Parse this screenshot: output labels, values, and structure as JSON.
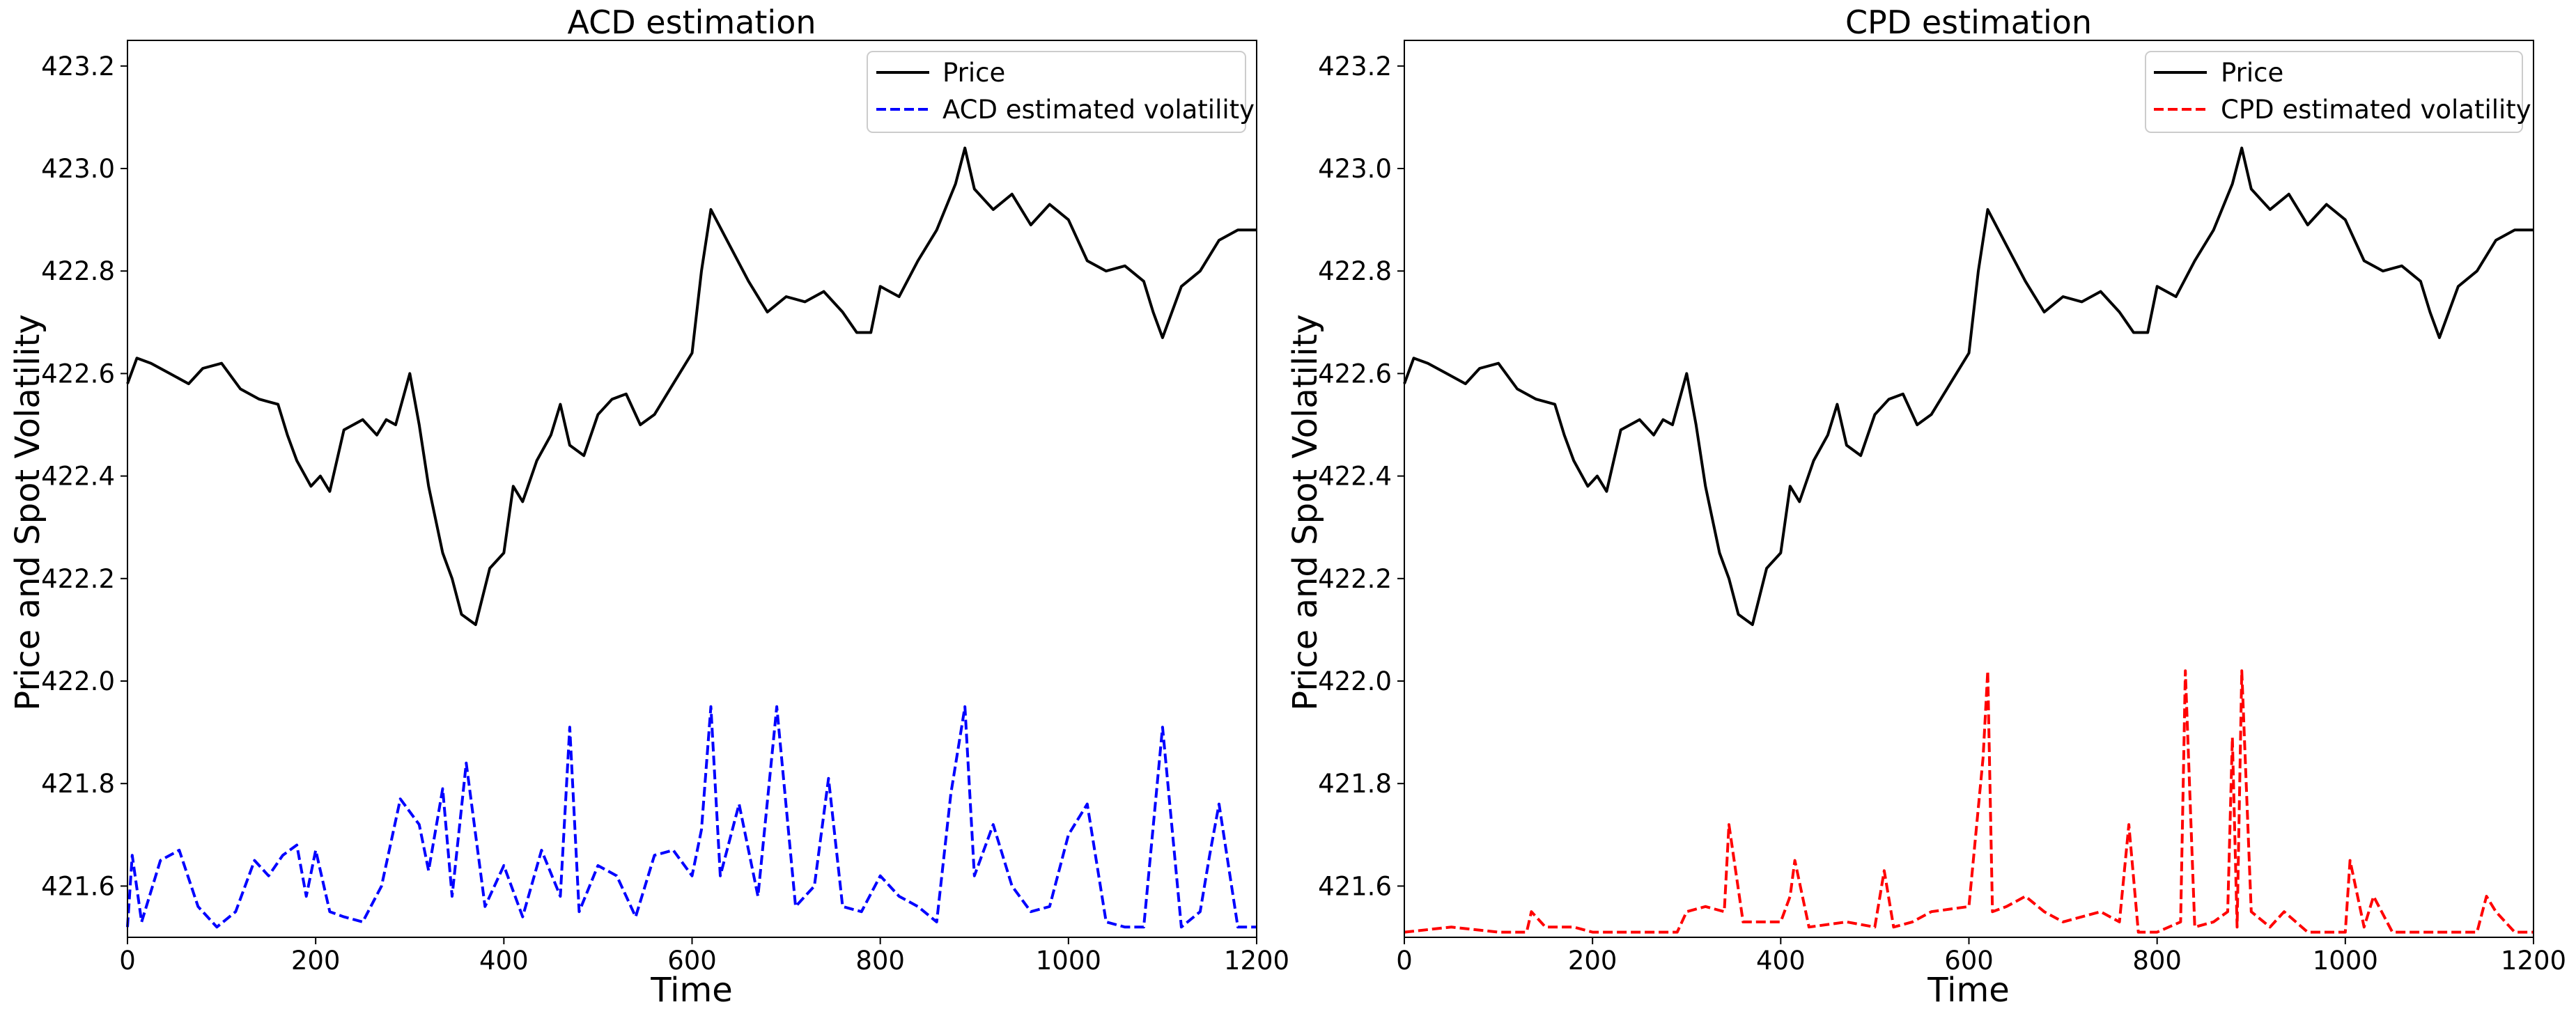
{
  "chart_data": [
    {
      "type": "line",
      "title": "ACD estimation",
      "xlabel": "Time",
      "ylabel": "Price and Spot Volatility",
      "xlim": [
        0,
        1200
      ],
      "ylim": [
        421.5,
        423.25
      ],
      "x_ticks": [
        0,
        200,
        400,
        600,
        800,
        1000,
        1200
      ],
      "y_ticks": [
        421.6,
        421.8,
        422.0,
        422.2,
        422.4,
        422.6,
        422.8,
        423.0,
        423.2
      ],
      "legend_position": "upper-right",
      "series": [
        {
          "name": "Price",
          "color": "#000000",
          "style": "solid",
          "x": [
            0,
            10,
            25,
            45,
            65,
            80,
            100,
            120,
            140,
            160,
            170,
            180,
            195,
            205,
            215,
            230,
            250,
            265,
            275,
            285,
            300,
            310,
            320,
            335,
            345,
            355,
            370,
            385,
            400,
            410,
            420,
            435,
            450,
            460,
            470,
            485,
            500,
            515,
            530,
            545,
            560,
            580,
            600,
            610,
            620,
            640,
            660,
            680,
            700,
            720,
            740,
            760,
            775,
            790,
            800,
            820,
            840,
            860,
            880,
            890,
            900,
            910,
            920,
            940,
            960,
            980,
            1000,
            1020,
            1040,
            1060,
            1080,
            1090,
            1100,
            1110,
            1120,
            1140,
            1160,
            1180,
            1200
          ],
          "values": [
            422.58,
            422.63,
            422.62,
            422.6,
            422.58,
            422.61,
            422.62,
            422.57,
            422.55,
            422.54,
            422.48,
            422.43,
            422.38,
            422.4,
            422.37,
            422.49,
            422.51,
            422.48,
            422.51,
            422.5,
            422.6,
            422.5,
            422.38,
            422.25,
            422.2,
            422.13,
            422.11,
            422.22,
            422.25,
            422.38,
            422.35,
            422.43,
            422.48,
            422.54,
            422.46,
            422.44,
            422.52,
            422.55,
            422.56,
            422.5,
            422.52,
            422.58,
            422.64,
            422.8,
            422.92,
            422.85,
            422.78,
            422.72,
            422.75,
            422.74,
            422.76,
            422.72,
            422.68,
            422.68,
            422.77,
            422.75,
            422.82,
            422.88,
            422.97,
            423.04,
            422.96,
            422.94,
            422.92,
            422.95,
            422.89,
            422.93,
            422.9,
            422.82,
            422.8,
            422.81,
            422.78,
            422.72,
            422.67,
            422.72,
            422.77,
            422.8,
            422.86,
            422.88,
            422.88
          ]
        },
        {
          "name": "ACD estimated volatility",
          "color": "#0000ff",
          "style": "dashed",
          "x": [
            0,
            5,
            15,
            35,
            55,
            75,
            95,
            115,
            135,
            150,
            165,
            180,
            190,
            200,
            215,
            230,
            250,
            270,
            290,
            310,
            320,
            335,
            345,
            360,
            380,
            400,
            420,
            440,
            460,
            470,
            480,
            500,
            520,
            540,
            560,
            580,
            600,
            610,
            620,
            630,
            650,
            670,
            690,
            710,
            730,
            745,
            760,
            780,
            800,
            820,
            840,
            860,
            875,
            890,
            900,
            920,
            940,
            960,
            980,
            1000,
            1020,
            1040,
            1060,
            1080,
            1100,
            1120,
            1140,
            1150,
            1160,
            1180,
            1200
          ],
          "values": [
            421.52,
            421.66,
            421.53,
            421.65,
            421.67,
            421.56,
            421.52,
            421.55,
            421.65,
            421.62,
            421.66,
            421.68,
            421.58,
            421.67,
            421.55,
            421.54,
            421.53,
            421.6,
            421.77,
            421.72,
            421.63,
            421.79,
            421.58,
            421.84,
            421.56,
            421.64,
            421.54,
            421.67,
            421.58,
            421.91,
            421.55,
            421.64,
            421.62,
            421.54,
            421.66,
            421.67,
            421.62,
            421.71,
            421.95,
            421.62,
            421.76,
            421.58,
            421.95,
            421.56,
            421.6,
            421.81,
            421.56,
            421.55,
            421.62,
            421.58,
            421.56,
            421.53,
            421.78,
            421.95,
            421.62,
            421.72,
            421.6,
            421.55,
            421.56,
            421.7,
            421.76,
            421.53,
            421.52,
            421.52,
            421.91,
            421.52,
            421.55,
            421.66,
            421.76,
            421.52,
            421.52
          ]
        }
      ]
    },
    {
      "type": "line",
      "title": "CPD estimation",
      "xlabel": "Time",
      "ylabel": "Price and Spot Volatility",
      "xlim": [
        0,
        1200
      ],
      "ylim": [
        421.5,
        423.25
      ],
      "x_ticks": [
        0,
        200,
        400,
        600,
        800,
        1000,
        1200
      ],
      "y_ticks": [
        421.6,
        421.8,
        422.0,
        422.2,
        422.4,
        422.6,
        422.8,
        423.0,
        423.2
      ],
      "legend_position": "upper-right",
      "series": [
        {
          "name": "Price",
          "color": "#000000",
          "style": "solid",
          "x": [
            0,
            10,
            25,
            45,
            65,
            80,
            100,
            120,
            140,
            160,
            170,
            180,
            195,
            205,
            215,
            230,
            250,
            265,
            275,
            285,
            300,
            310,
            320,
            335,
            345,
            355,
            370,
            385,
            400,
            410,
            420,
            435,
            450,
            460,
            470,
            485,
            500,
            515,
            530,
            545,
            560,
            580,
            600,
            610,
            620,
            640,
            660,
            680,
            700,
            720,
            740,
            760,
            775,
            790,
            800,
            820,
            840,
            860,
            880,
            890,
            900,
            910,
            920,
            940,
            960,
            980,
            1000,
            1020,
            1040,
            1060,
            1080,
            1090,
            1100,
            1110,
            1120,
            1140,
            1160,
            1180,
            1200
          ],
          "values": [
            422.58,
            422.63,
            422.62,
            422.6,
            422.58,
            422.61,
            422.62,
            422.57,
            422.55,
            422.54,
            422.48,
            422.43,
            422.38,
            422.4,
            422.37,
            422.49,
            422.51,
            422.48,
            422.51,
            422.5,
            422.6,
            422.5,
            422.38,
            422.25,
            422.2,
            422.13,
            422.11,
            422.22,
            422.25,
            422.38,
            422.35,
            422.43,
            422.48,
            422.54,
            422.46,
            422.44,
            422.52,
            422.55,
            422.56,
            422.5,
            422.52,
            422.58,
            422.64,
            422.8,
            422.92,
            422.85,
            422.78,
            422.72,
            422.75,
            422.74,
            422.76,
            422.72,
            422.68,
            422.68,
            422.77,
            422.75,
            422.82,
            422.88,
            422.97,
            423.04,
            422.96,
            422.94,
            422.92,
            422.95,
            422.89,
            422.93,
            422.9,
            422.82,
            422.8,
            422.81,
            422.78,
            422.72,
            422.67,
            422.72,
            422.77,
            422.8,
            422.86,
            422.88,
            422.88
          ]
        },
        {
          "name": "CPD estimated volatility",
          "color": "#ff0000",
          "style": "dashed",
          "x": [
            0,
            50,
            100,
            130,
            135,
            150,
            180,
            200,
            250,
            290,
            300,
            320,
            340,
            345,
            360,
            400,
            410,
            415,
            430,
            470,
            500,
            510,
            520,
            540,
            560,
            600,
            615,
            620,
            625,
            640,
            660,
            680,
            700,
            740,
            760,
            770,
            780,
            800,
            825,
            830,
            840,
            860,
            875,
            880,
            885,
            890,
            900,
            920,
            935,
            960,
            1000,
            1005,
            1020,
            1030,
            1050,
            1100,
            1140,
            1150,
            1160,
            1180,
            1200
          ],
          "values": [
            421.51,
            421.52,
            421.51,
            421.51,
            421.55,
            421.52,
            421.52,
            421.51,
            421.51,
            421.51,
            421.55,
            421.56,
            421.55,
            421.72,
            421.53,
            421.53,
            421.58,
            421.65,
            421.52,
            421.53,
            421.52,
            421.63,
            421.52,
            421.53,
            421.55,
            421.56,
            421.85,
            422.02,
            421.55,
            421.56,
            421.58,
            421.55,
            421.53,
            421.55,
            421.53,
            421.72,
            421.51,
            421.51,
            421.53,
            422.02,
            421.52,
            421.53,
            421.55,
            421.89,
            421.52,
            422.02,
            421.55,
            421.52,
            421.55,
            421.51,
            421.51,
            421.65,
            421.52,
            421.58,
            421.51,
            421.51,
            421.51,
            421.58,
            421.55,
            421.51,
            421.51
          ]
        }
      ]
    }
  ]
}
